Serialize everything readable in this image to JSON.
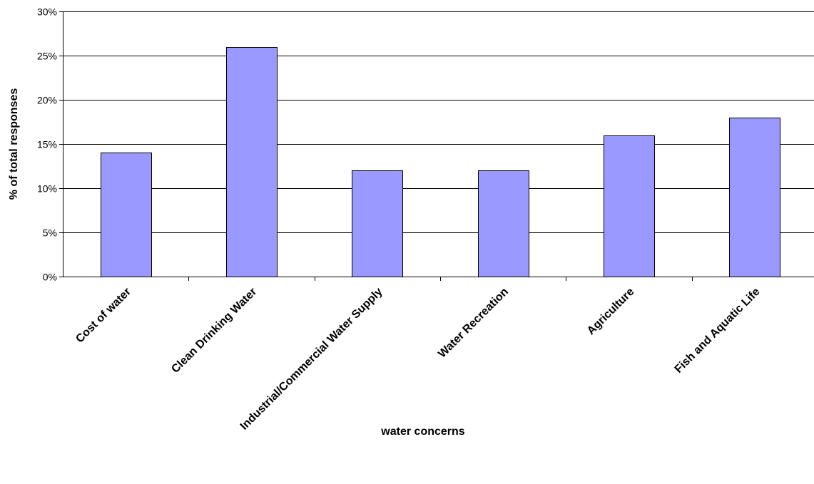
{
  "chart_data": {
    "type": "bar",
    "categories": [
      "Cost of water",
      "Clean Drinking Water",
      "Industrial/Commercial Water Supply",
      "Water Recreation",
      "Agriculture",
      "Fish and Aquatic Life"
    ],
    "values": [
      14,
      26,
      12,
      12,
      16,
      18
    ],
    "value_unit": "%",
    "title": "",
    "xlabel": "water concerns",
    "ylabel": "% of total responses",
    "ylim": [
      0,
      30
    ],
    "yticks": [
      "0%",
      "5%",
      "10%",
      "15%",
      "20%",
      "25%",
      "30%"
    ],
    "grid": true,
    "legend": "none",
    "colors": {
      "bar_fill": "#9999ff",
      "bar_stroke": "#000000",
      "grid": "#000000",
      "axis": "#000000"
    }
  }
}
